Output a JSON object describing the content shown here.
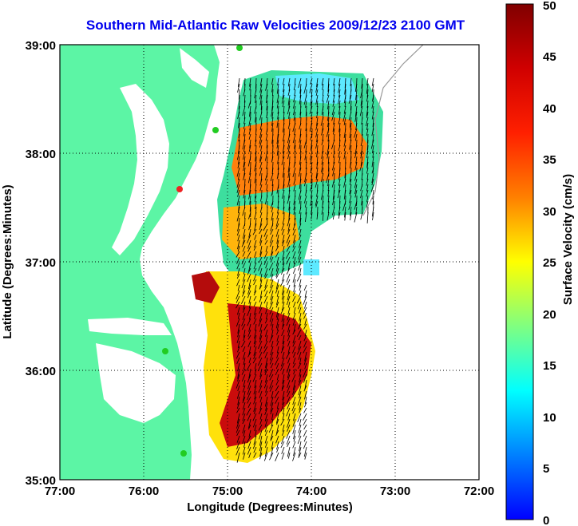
{
  "title": "Southern Mid-Atlantic Raw Velocities 2009/12/23 2100 GMT",
  "xlabel": "Longitude (Degrees:Minutes)",
  "ylabel": "Latitude (Degrees:Minutes)",
  "x_ticks": [
    "77:00",
    "76:00",
    "75:00",
    "74:00",
    "73:00",
    "72:00"
  ],
  "y_ticks": [
    "39:00",
    "38:00",
    "37:00",
    "36:00",
    "35:00"
  ],
  "colorbar": {
    "label": "Surface Velocity (cm/s)",
    "ticks": [
      "0",
      "5",
      "10",
      "15",
      "20",
      "25",
      "30",
      "35",
      "40",
      "45",
      "50"
    ],
    "range": [
      0,
      50
    ]
  },
  "colors": {
    "land": "#5cf5a5",
    "title": "#0000ee",
    "station": "#22cc22",
    "station_alt": "#ee2222"
  },
  "chart_data": {
    "type": "heatmap",
    "title": "Southern Mid-Atlantic Raw Velocities 2009/12/23 2100 GMT",
    "xlabel": "Longitude (Degrees:Minutes)",
    "ylabel": "Latitude (Degrees:Minutes)",
    "xlim": [
      -77,
      -72
    ],
    "ylim": [
      35,
      39
    ],
    "grid": true,
    "value_label": "Surface Velocity (cm/s)",
    "value_range": [
      0,
      50
    ]
  }
}
